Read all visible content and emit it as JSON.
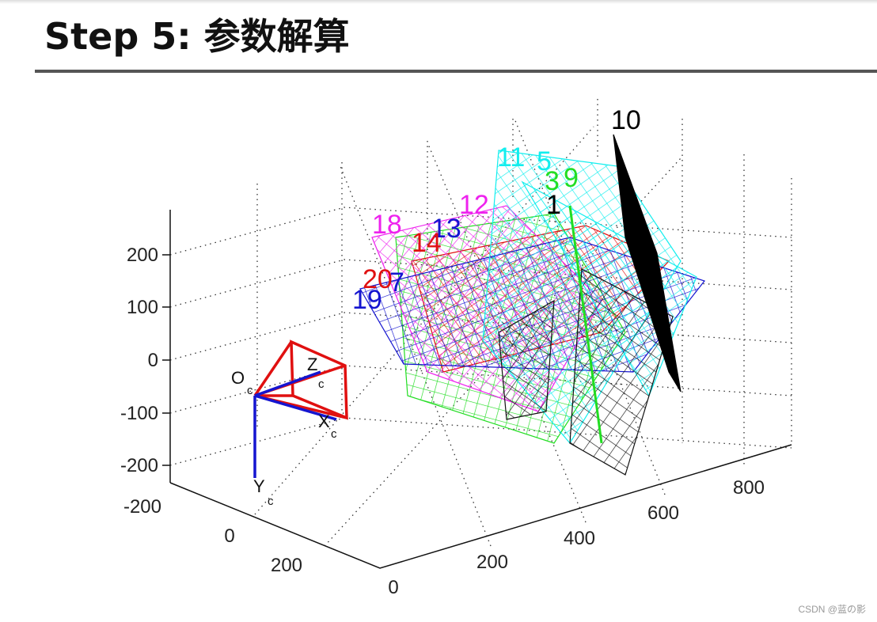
{
  "header": {
    "title": "Step 5: 参数解算"
  },
  "figure": {
    "z_ticks": [
      "200",
      "100",
      "0",
      "-100",
      "-200"
    ],
    "y_ticks": [
      "-200",
      "0",
      "200"
    ],
    "x_ticks": [
      "0",
      "200",
      "400",
      "600",
      "800"
    ],
    "plane_labels": [
      "10",
      "11",
      "5",
      "3",
      "9",
      "1",
      "12",
      "18",
      "13",
      "14",
      "20",
      "7",
      "19"
    ],
    "camera_labels": [
      {
        "label": "O",
        "sub": "c"
      },
      {
        "label": "Z",
        "sub": "c"
      },
      {
        "label": "X",
        "sub": "c"
      },
      {
        "label": "Y",
        "sub": "c"
      }
    ]
  },
  "watermark": "CSDN @蓝の影"
}
